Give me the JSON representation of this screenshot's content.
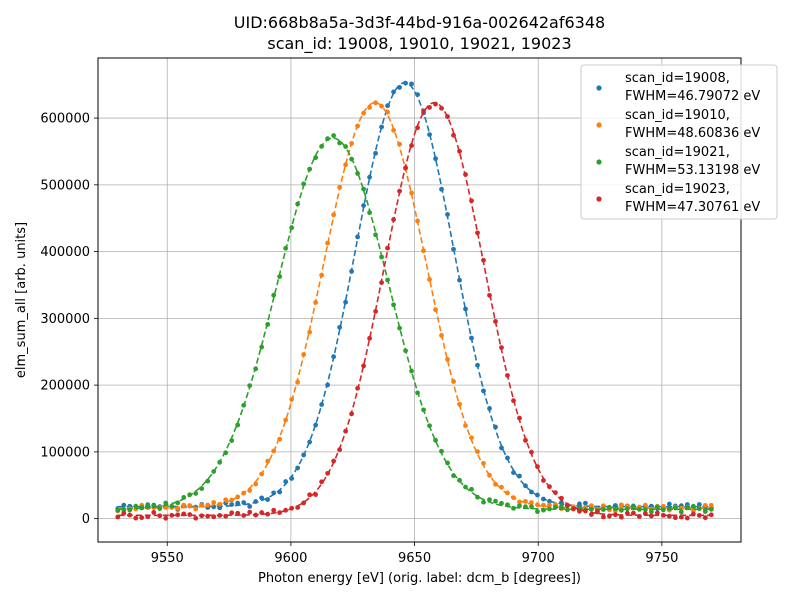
{
  "chart_data": {
    "type": "line",
    "title": "UID:668b8a5a-3d3f-44bd-916a-002642af6348",
    "subtitle": "scan_id: 19008, 19010, 19021, 19023",
    "xlabel": "Photon energy [eV] (orig. label: dcm_b [degrees])",
    "ylabel": "elm_sum_all [arb. units]",
    "xlim": [
      9522,
      9782
    ],
    "ylim": [
      -35000,
      690000
    ],
    "x_ticks": [
      9550,
      9600,
      9650,
      9700,
      9750
    ],
    "y_ticks": [
      0,
      100000,
      200000,
      300000,
      400000,
      500000,
      600000
    ],
    "grid": true,
    "legend_position": "top-right",
    "series": [
      {
        "name": "scan_id=19008,\nFWHM=46.79072 eV",
        "legend_lines": [
          "scan_id=19008,",
          "FWHM=46.79072 eV"
        ],
        "color": "#1f77b4",
        "center": 9646,
        "fwhm": 46.79072,
        "amplitude": 635000,
        "baseline": 18000
      },
      {
        "name": "scan_id=19010,\nFWHM=48.60836 eV",
        "legend_lines": [
          "scan_id=19010,",
          "FWHM=48.60836 eV"
        ],
        "color": "#ff7f0e",
        "center": 9634,
        "fwhm": 48.60836,
        "amplitude": 607000,
        "baseline": 16000
      },
      {
        "name": "scan_id=19021,\nFWHM=53.13198 eV",
        "legend_lines": [
          "scan_id=19021,",
          "FWHM=53.13198 eV"
        ],
        "color": "#2ca02c",
        "center": 9617,
        "fwhm": 53.13198,
        "amplitude": 556000,
        "baseline": 14000
      },
      {
        "name": "scan_id=19023,\nFWHM=47.30761 eV",
        "legend_lines": [
          "scan_id=19023,",
          "FWHM=47.30761 eV"
        ],
        "color": "#d62728",
        "center": 9658,
        "fwhm": 47.30761,
        "amplitude": 618000,
        "baseline": 5000
      }
    ],
    "x_range": [
      9530,
      9770
    ],
    "point_count": 100
  }
}
